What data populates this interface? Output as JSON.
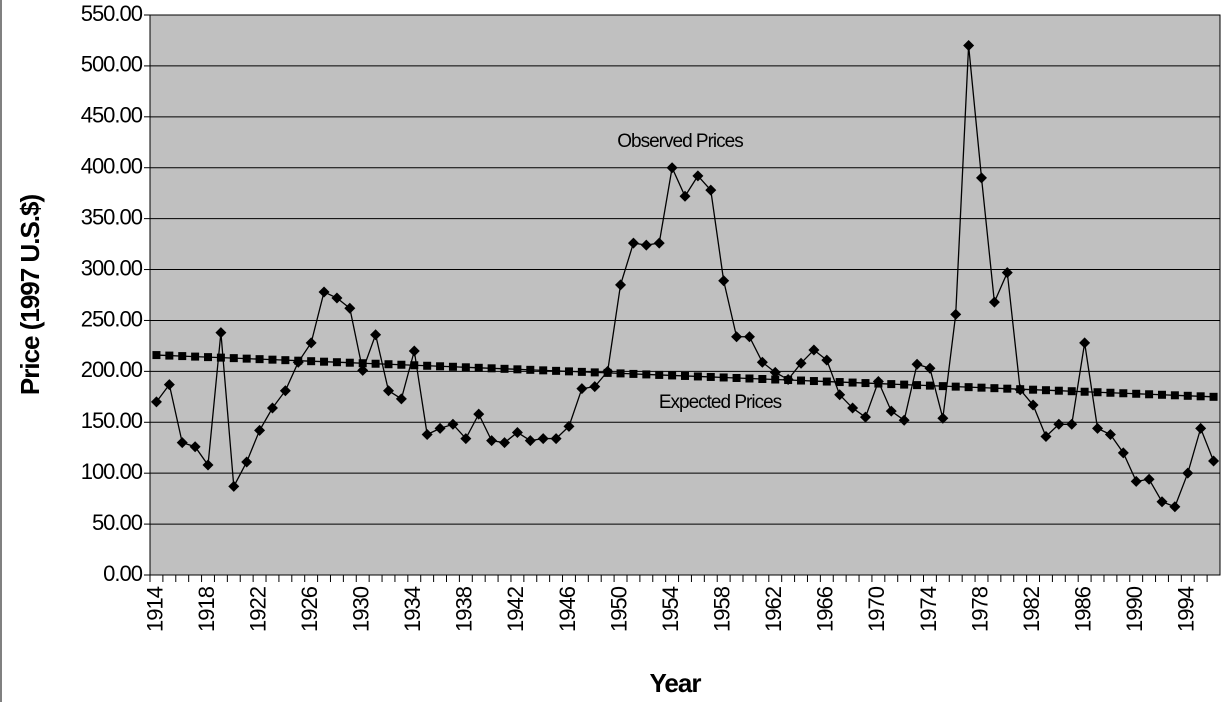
{
  "chart_data": {
    "type": "line",
    "xlabel": "Year",
    "ylabel": "Price (1997 U.S.$)",
    "categories": [
      "1914",
      null,
      null,
      null,
      "1918",
      null,
      null,
      null,
      "1922",
      null,
      null,
      null,
      "1926",
      null,
      null,
      null,
      "1930",
      null,
      null,
      null,
      "1934",
      null,
      null,
      null,
      "1938",
      null,
      null,
      null,
      "1942",
      null,
      null,
      null,
      "1946",
      null,
      null,
      null,
      "1950",
      null,
      null,
      null,
      "1954",
      null,
      null,
      null,
      "1958",
      null,
      null,
      null,
      "1962",
      null,
      null,
      null,
      "1966",
      null,
      null,
      null,
      "1970",
      null,
      null,
      null,
      "1974",
      null,
      null,
      null,
      "1978",
      null,
      null,
      null,
      "1982",
      null,
      null,
      null,
      "1986",
      null,
      null,
      null,
      "1990",
      null,
      null,
      null,
      "1994",
      null,
      null
    ],
    "series": [
      {
        "name": "Observed Prices",
        "color": "#000000",
        "marker": "diamond",
        "values": [
          170,
          187,
          130,
          126,
          108,
          238,
          87,
          111,
          142,
          164,
          181,
          209,
          228,
          278,
          272,
          262,
          201,
          236,
          181,
          173,
          220,
          138,
          144,
          148,
          134,
          158,
          132,
          130,
          140,
          132,
          134,
          134,
          146,
          183,
          185,
          200,
          285,
          326,
          324,
          326,
          400,
          372,
          392,
          378,
          289,
          234,
          234,
          209,
          199,
          192,
          208,
          221,
          211,
          177,
          164,
          155,
          190,
          161,
          152,
          207,
          203,
          154,
          256,
          520,
          390,
          268,
          297,
          182,
          167,
          136,
          148,
          148,
          228,
          144,
          138,
          120,
          92,
          94,
          72,
          67,
          100,
          144,
          112
        ]
      },
      {
        "name": "Expected Prices",
        "color": "#000000",
        "marker": "square",
        "values": [
          216,
          215.5,
          215,
          214.5,
          214,
          213.5,
          213,
          212.5,
          212,
          211.5,
          211,
          210.5,
          210,
          209.5,
          209,
          208.5,
          208,
          207.5,
          207,
          206.5,
          206,
          205.5,
          205,
          204.5,
          204,
          203.5,
          203,
          202.5,
          202,
          201.5,
          201,
          200.5,
          200,
          199.5,
          199,
          198.5,
          198,
          197.5,
          197,
          196.5,
          196,
          195.5,
          195,
          194.5,
          194,
          193.5,
          193,
          192.5,
          192,
          191.5,
          191,
          190.5,
          190,
          189.5,
          189,
          188.5,
          188,
          187.5,
          187,
          186.5,
          186,
          185.5,
          185,
          184.5,
          184,
          183.5,
          183,
          182.5,
          182,
          181.5,
          181,
          180.5,
          180,
          179.5,
          179,
          178.5,
          178,
          177.5,
          177,
          176.5,
          176,
          175.5,
          175
        ]
      }
    ],
    "ylim": [
      0,
      550
    ],
    "yticks": [
      {
        "value": 0,
        "label": "0.00"
      },
      {
        "value": 50,
        "label": "50.00"
      },
      {
        "value": 100,
        "label": "100.00"
      },
      {
        "value": 150,
        "label": "150.00"
      },
      {
        "value": 200,
        "label": "200.00"
      },
      {
        "value": 250,
        "label": "250.00"
      },
      {
        "value": 300,
        "label": "300.00"
      },
      {
        "value": 350,
        "label": "350.00"
      },
      {
        "value": 400,
        "label": "400.00"
      },
      {
        "value": 450,
        "label": "450.00"
      },
      {
        "value": 500,
        "label": "500.00"
      },
      {
        "value": 550,
        "label": "550.00"
      }
    ],
    "grid": true,
    "plot_background": "#c0c0c0",
    "annotations": [
      {
        "text": "Observed Prices"
      },
      {
        "text": "Expected Prices"
      }
    ]
  }
}
